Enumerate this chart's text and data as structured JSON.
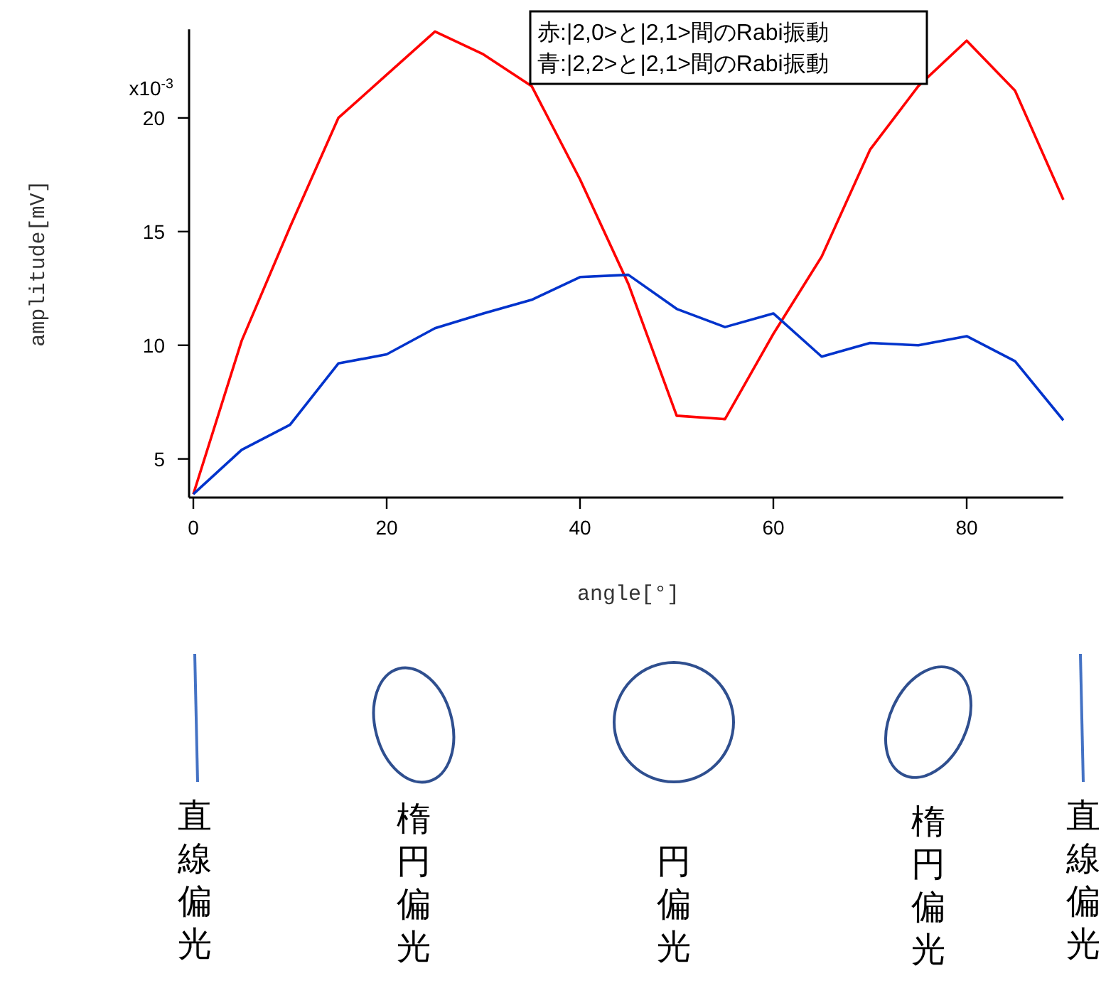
{
  "chart_data": {
    "type": "line",
    "xlabel": "angle[°]",
    "ylabel": "amplitude[mV]",
    "x": [
      0,
      5,
      10,
      15,
      20,
      25,
      30,
      35,
      40,
      45,
      50,
      55,
      60,
      65,
      70,
      75,
      80,
      85,
      90
    ],
    "series": [
      {
        "color": "#ff0000",
        "values": [
          3.45,
          10.2,
          15.2,
          20.0,
          21.9,
          23.8,
          22.8,
          21.4,
          17.3,
          12.7,
          6.9,
          6.75,
          10.5,
          13.9,
          18.6,
          21.4,
          23.4,
          21.2,
          16.4
        ]
      },
      {
        "color": "#0033cc",
        "values": [
          3.45,
          5.4,
          6.5,
          9.2,
          9.6,
          10.75,
          11.4,
          12.0,
          13.0,
          13.1,
          11.6,
          10.8,
          11.4,
          9.5,
          10.1,
          10.0,
          10.4,
          9.3,
          6.7
        ]
      }
    ],
    "xlim": [
      0,
      90
    ],
    "ylim": [
      3.3,
      23.9
    ],
    "xticks": [
      0,
      20,
      40,
      60,
      80
    ],
    "yticks": [
      5,
      10,
      15,
      20
    ],
    "annotations": [
      "赤:|2,0>と|2,1>間のRabi振動",
      "青:|2,2>と|2,1>間のRabi振動",
      "x10$^{-3}$",
      "直線偏光",
      "楕円偏光",
      "円偏光",
      "楕円偏光",
      "直線偏光"
    ]
  }
}
